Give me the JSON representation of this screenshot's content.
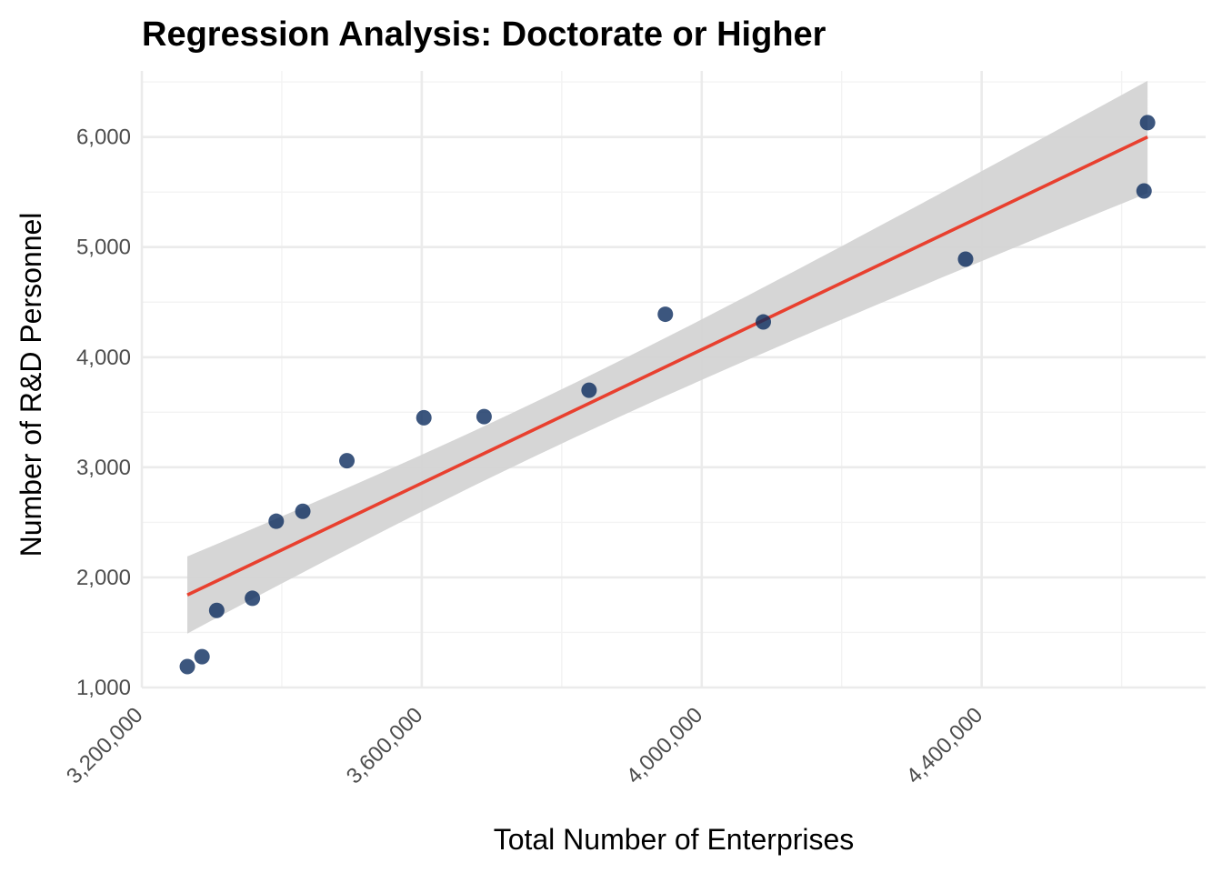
{
  "chart_data": {
    "type": "scatter",
    "title": "Regression Analysis: Doctorate or Higher",
    "xlabel": "Total Number of Enterprises",
    "ylabel": "Number of R&D Personnel",
    "xlim": [
      3200000,
      4720000
    ],
    "ylim": [
      1000,
      6600
    ],
    "x_ticks": [
      3200000,
      3600000,
      4000000,
      4400000
    ],
    "x_tick_labels": [
      "3,200,000",
      "3,600,000",
      "4,000,000",
      "4,400,000"
    ],
    "y_ticks": [
      1000,
      2000,
      3000,
      4000,
      5000,
      6000
    ],
    "y_tick_labels": [
      "1,000",
      "2,000",
      "3,000",
      "4,000",
      "5,000",
      "6,000"
    ],
    "grid": true,
    "legend": "none",
    "colors": {
      "points": "#0b2c5e",
      "fit_line": "#e8402f",
      "confidence_band": "#d4d4d4"
    },
    "series": [
      {
        "kind": "points",
        "x": [
          3265000,
          3286000,
          3307000,
          3358000,
          3392000,
          3430000,
          3493000,
          3603000,
          3689000,
          3839000,
          3948000,
          4088000,
          4377000,
          4632000,
          4637000
        ],
        "y": [
          1190,
          1280,
          1700,
          1810,
          2510,
          2600,
          3060,
          3450,
          3460,
          3700,
          4390,
          4320,
          4890,
          5510,
          6130
        ]
      },
      {
        "kind": "linear_fit",
        "x": [
          3265000,
          4637000
        ],
        "y": [
          1840,
          6000
        ],
        "ci_lower": [
          1490,
          5500
        ],
        "ci_upper": [
          2190,
          6520
        ]
      }
    ]
  }
}
